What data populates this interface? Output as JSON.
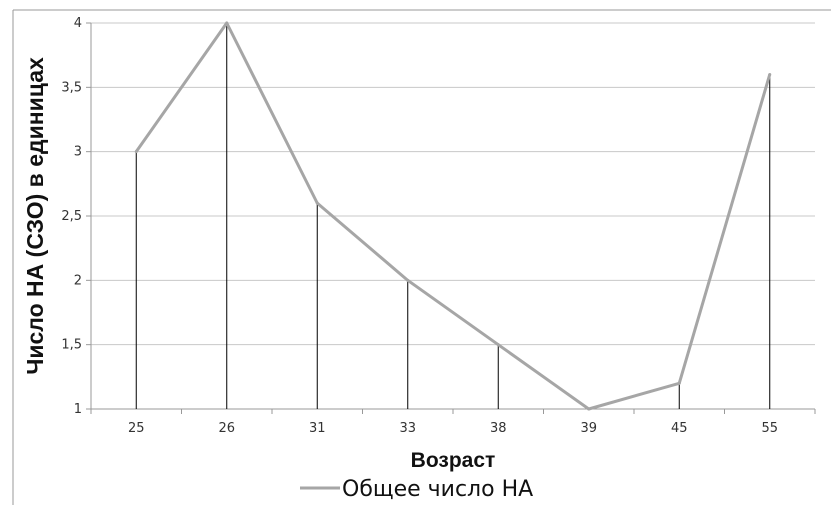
{
  "chart_data": {
    "type": "line",
    "title": "",
    "xlabel": "Возраст",
    "ylabel": "Число НА (СЗО) в единицах",
    "categories": [
      "25",
      "26",
      "31",
      "33",
      "38",
      "39",
      "45",
      "55"
    ],
    "series": [
      {
        "name": "Общее число НА",
        "values": [
          3,
          4,
          2.6,
          2,
          1.5,
          1,
          1.2,
          3.6
        ]
      }
    ],
    "ylim": [
      1,
      4
    ],
    "yticks": [
      "1",
      "1,5",
      "2",
      "2,5",
      "3",
      "3,5",
      "4"
    ],
    "grid": true,
    "drop_lines": true,
    "legend": "bottom",
    "colors": {
      "series": "#a6a6a6",
      "grid": "#c8c8c8",
      "drop_line": "#000000"
    }
  }
}
